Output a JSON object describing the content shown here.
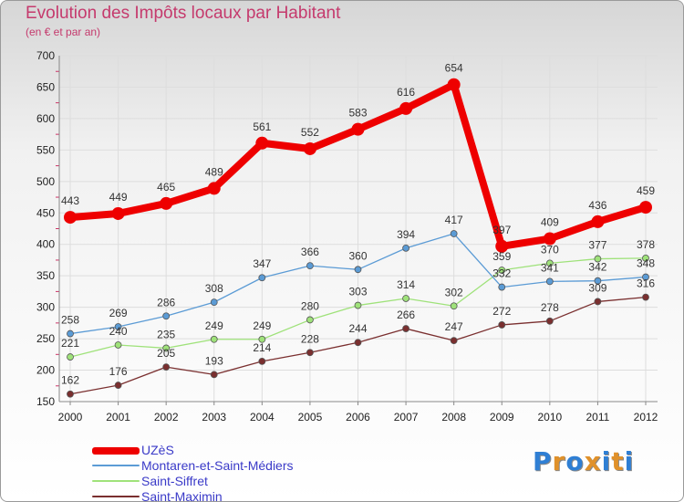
{
  "title": "Evolution des Impôts locaux par Habitant",
  "subtitle": "(en € et par an)",
  "brand": {
    "text": "Proxiti",
    "letter_colors": [
      "#2f7fd4",
      "#e0912a",
      "#2f7fd4",
      "#e0912a",
      "#2f7fd4",
      "#e0912a",
      "#2f7fd4"
    ]
  },
  "chart_data": {
    "type": "line",
    "x": [
      "2000",
      "2001",
      "2002",
      "2003",
      "2004",
      "2005",
      "2006",
      "2007",
      "2008",
      "2009",
      "2010",
      "2011",
      "2012"
    ],
    "ylim": [
      150,
      700
    ],
    "yticks": [
      150,
      200,
      250,
      300,
      350,
      400,
      450,
      500,
      550,
      600,
      650,
      700
    ],
    "grid": true,
    "legend_position": "bottom-left",
    "series": [
      {
        "name": "UZèS",
        "color": "#ee0000",
        "values": [
          443,
          449,
          465,
          489,
          561,
          552,
          583,
          616,
          654,
          397,
          409,
          436,
          459
        ]
      },
      {
        "name": "Montaren-et-Saint-Médiers",
        "color": "#5b9bd5",
        "values": [
          258,
          269,
          286,
          308,
          347,
          366,
          360,
          394,
          417,
          332,
          341,
          342,
          348
        ]
      },
      {
        "name": "Saint-Siffret",
        "color": "#9fe27a",
        "values": [
          221,
          240,
          235,
          249,
          249,
          280,
          303,
          314,
          302,
          359,
          370,
          377,
          378
        ]
      },
      {
        "name": "Saint-Maximin",
        "color": "#7a2f2f",
        "values": [
          162,
          176,
          205,
          193,
          214,
          228,
          244,
          266,
          247,
          272,
          278,
          309,
          316
        ]
      }
    ]
  }
}
